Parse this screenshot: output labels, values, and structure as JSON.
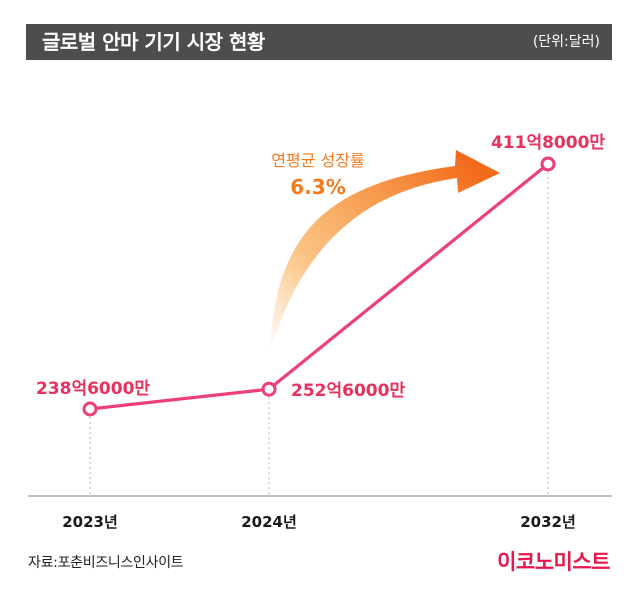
{
  "header": {
    "title": "글로벌 안마 기기 시장 현황",
    "unit": "(단위:달러)"
  },
  "chart_data": {
    "type": "line",
    "categories": [
      "2023년",
      "2024년",
      "2032년"
    ],
    "x": [
      2023,
      2024,
      2032
    ],
    "values": [
      23860000000,
      25260000000,
      41180000000
    ],
    "data_labels": [
      "238억6000만",
      "252억6000만",
      "411억8000만"
    ],
    "annotation": {
      "label": "연평균 성장률",
      "value": "6.3%"
    },
    "title": "글로벌 안마 기기 시장 현황",
    "unit": "(단위:달러)",
    "grid": false
  },
  "footer": {
    "source": "자료:포춘비즈니스인사이트",
    "logo": "이코노미스트"
  },
  "colors": {
    "line": "#ee3f78",
    "label": "#e8315f",
    "arrow": "#f47a1f",
    "title_bar": "#4d4d4d",
    "brand": "#e8164a"
  }
}
